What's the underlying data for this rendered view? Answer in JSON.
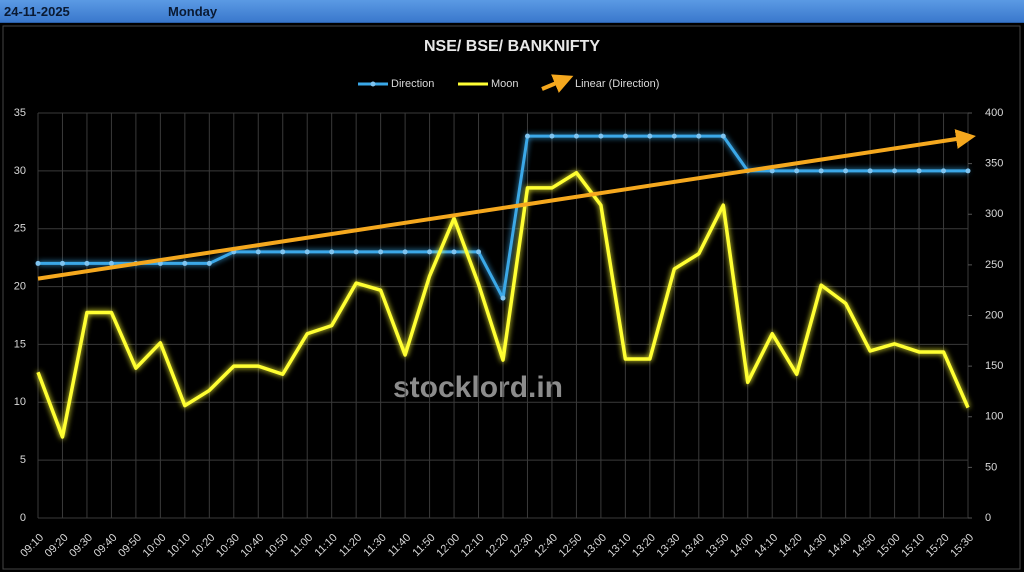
{
  "header": {
    "date": "24-11-2025",
    "day": "Monday"
  },
  "chart_data": {
    "type": "line",
    "title": "NSE/ BSE/ BANKNIFTY",
    "watermark": "stocklord.in",
    "categories": [
      "09:10",
      "09:20",
      "09:30",
      "09:40",
      "09:50",
      "10:00",
      "10:10",
      "10:20",
      "10:30",
      "10:40",
      "10:50",
      "11:00",
      "11:10",
      "11:20",
      "11:30",
      "11:40",
      "11:50",
      "12:00",
      "12:10",
      "12:20",
      "12:30",
      "12:40",
      "12:50",
      "13:00",
      "13:10",
      "13:20",
      "13:30",
      "13:40",
      "13:50",
      "14:00",
      "14:10",
      "14:20",
      "14:30",
      "14:40",
      "14:50",
      "15:00",
      "15:10",
      "15:20",
      "15:30"
    ],
    "series": [
      {
        "name": "Direction",
        "color": "#3aa8e8",
        "axis": "y",
        "values": [
          22,
          22,
          22,
          22,
          22,
          22,
          22,
          22,
          23,
          23,
          23,
          23,
          23,
          23,
          23,
          23,
          23,
          23,
          23,
          19,
          33,
          33,
          33,
          33,
          33,
          33,
          33,
          33,
          33,
          30,
          30,
          30,
          30,
          30,
          30,
          30,
          30,
          30,
          30
        ]
      },
      {
        "name": "Moon",
        "color": "#ffff33",
        "axis": "y2",
        "values": [
          144,
          80,
          203,
          203,
          148,
          173,
          111,
          126,
          150,
          150,
          142,
          182,
          190,
          232,
          225,
          161,
          239,
          296,
          231,
          156,
          326,
          326,
          341,
          309,
          157,
          157,
          246,
          261,
          309,
          134,
          182,
          142,
          230,
          212,
          165,
          172,
          164,
          164,
          109
        ]
      }
    ],
    "trendline": {
      "name": "Linear (Direction)",
      "color": "#f5a81e"
    },
    "ylim": [
      0,
      35
    ],
    "yticks": [
      0,
      5,
      10,
      15,
      20,
      25,
      30,
      35
    ],
    "y2lim": [
      0,
      400
    ],
    "y2ticks": [
      0,
      50,
      100,
      150,
      200,
      250,
      300,
      350,
      400
    ],
    "grid": true
  }
}
